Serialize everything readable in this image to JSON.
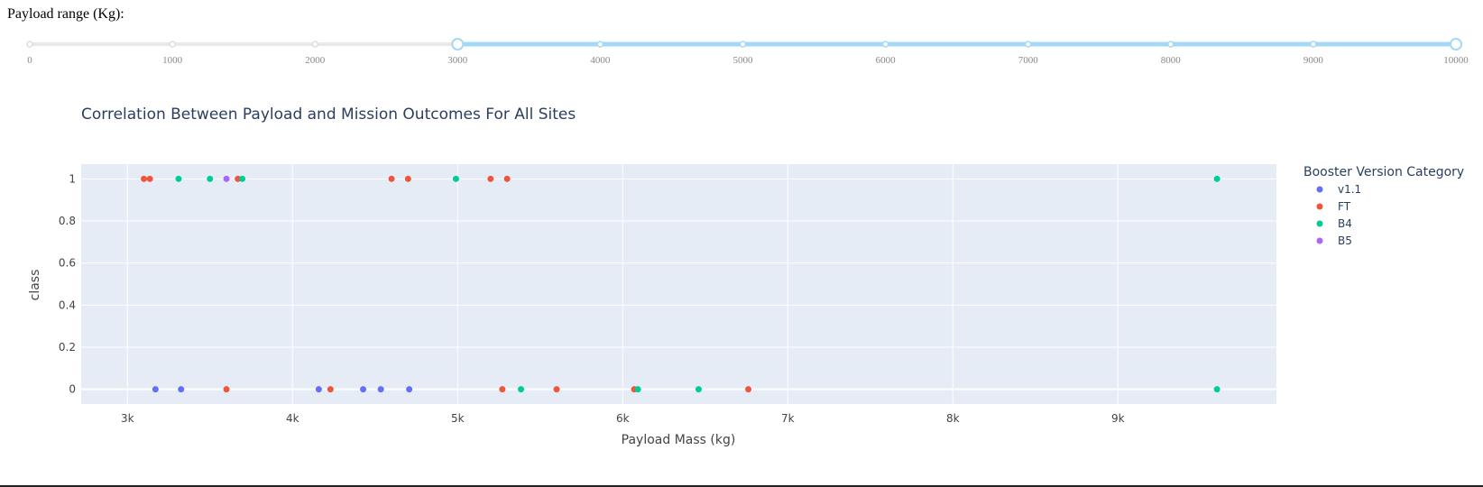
{
  "slider": {
    "label": "Payload range (Kg):",
    "min": 0,
    "max": 10000,
    "marks": [
      "0",
      "1000",
      "2000",
      "3000",
      "4000",
      "5000",
      "6000",
      "7000",
      "8000",
      "9000",
      "10000"
    ],
    "value": [
      3000,
      10000
    ],
    "colors": {
      "track": "#e9e9e9",
      "active": "#a3d9f5",
      "dot": "#dddddd"
    }
  },
  "chart_data": {
    "type": "scatter",
    "title": "Correlation Between Payload and Mission Outcomes For All Sites",
    "xlabel": "Payload Mass (kg)",
    "ylabel": "class",
    "xlim": [
      2720,
      9960
    ],
    "ylim": [
      -0.07,
      1.07
    ],
    "xticks": [
      3000,
      4000,
      5000,
      6000,
      7000,
      8000,
      9000
    ],
    "xtick_labels": [
      "3k",
      "4k",
      "5k",
      "6k",
      "7k",
      "8k",
      "9k"
    ],
    "yticks": [
      0,
      0.2,
      0.4,
      0.6,
      0.8,
      1
    ],
    "ytick_labels": [
      "0",
      "0.2",
      "0.4",
      "0.6",
      "0.8",
      "1"
    ],
    "grid": true,
    "plot_bg": "#e5ecf6",
    "legend": {
      "title": "Booster Version Category",
      "position": "right-top"
    },
    "series": [
      {
        "name": "v1.1",
        "color": "#636efa",
        "points": [
          {
            "x": 3170,
            "y": 0
          },
          {
            "x": 3325,
            "y": 0
          },
          {
            "x": 4159,
            "y": 0
          },
          {
            "x": 4428,
            "y": 0
          },
          {
            "x": 4535,
            "y": 0
          },
          {
            "x": 4707,
            "y": 0
          }
        ]
      },
      {
        "name": "FT",
        "color": "#ef553b",
        "points": [
          {
            "x": 3100,
            "y": 1
          },
          {
            "x": 3136,
            "y": 1
          },
          {
            "x": 3669,
            "y": 1
          },
          {
            "x": 4600,
            "y": 1
          },
          {
            "x": 4700,
            "y": 1
          },
          {
            "x": 5200,
            "y": 1
          },
          {
            "x": 5300,
            "y": 1
          },
          {
            "x": 3600,
            "y": 0
          },
          {
            "x": 4230,
            "y": 0
          },
          {
            "x": 5271,
            "y": 0
          },
          {
            "x": 5600,
            "y": 0
          },
          {
            "x": 6070,
            "y": 0
          },
          {
            "x": 6761,
            "y": 0
          }
        ]
      },
      {
        "name": "B4",
        "color": "#00cc96",
        "points": [
          {
            "x": 3310,
            "y": 1
          },
          {
            "x": 3500,
            "y": 1
          },
          {
            "x": 3696,
            "y": 1
          },
          {
            "x": 4990,
            "y": 1
          },
          {
            "x": 9600,
            "y": 1
          },
          {
            "x": 5384,
            "y": 0
          },
          {
            "x": 6092,
            "y": 0
          },
          {
            "x": 6460,
            "y": 0
          },
          {
            "x": 9600,
            "y": 0
          }
        ]
      },
      {
        "name": "B5",
        "color": "#ab63fa",
        "points": [
          {
            "x": 3600,
            "y": 1
          }
        ]
      }
    ]
  }
}
